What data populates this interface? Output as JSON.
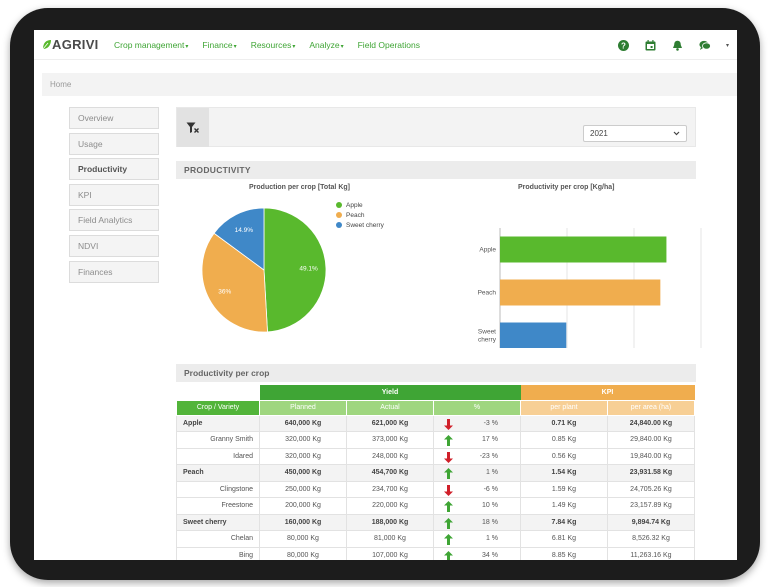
{
  "brand": {
    "name": "AGRIVI"
  },
  "nav": {
    "items": [
      {
        "label": "Crop management",
        "has_caret": true
      },
      {
        "label": "Finance",
        "has_caret": true
      },
      {
        "label": "Resources",
        "has_caret": true
      },
      {
        "label": "Analyze",
        "has_caret": true
      },
      {
        "label": "Field Operations",
        "has_caret": false
      }
    ],
    "icons": [
      "help-icon",
      "calendar-icon",
      "bell-icon",
      "chat-icon"
    ],
    "caret": "▾"
  },
  "breadcrumb": {
    "home": "Home"
  },
  "sidebar": {
    "items": [
      {
        "label": "Overview",
        "active": false
      },
      {
        "label": "Usage",
        "active": false
      },
      {
        "label": "Productivity",
        "active": true
      },
      {
        "label": "KPI",
        "active": false
      },
      {
        "label": "Field Analytics",
        "active": false
      },
      {
        "label": "NDVI",
        "active": false
      },
      {
        "label": "Finances",
        "active": false
      }
    ]
  },
  "filter": {
    "icon": "filter-clear-icon",
    "year": "2021"
  },
  "sections": {
    "productivity": "PRODUCTIVITY",
    "per_crop": "Productivity per crop"
  },
  "colors": {
    "apple": "#59b92d",
    "peach": "#f0ad4e",
    "sweet_cherry": "#3f88c8",
    "brand_green": "#3fa535"
  },
  "chart_data": [
    {
      "type": "pie",
      "title": "Production per crop [Total Kg]",
      "legend_position": "right",
      "series": [
        {
          "name": "Apple",
          "value": 49.1,
          "label": "49.1%"
        },
        {
          "name": "Peach",
          "value": 36.0,
          "label": "36%"
        },
        {
          "name": "Sweet cherry",
          "value": 14.9,
          "label": "14.9%"
        }
      ]
    },
    {
      "type": "bar",
      "orientation": "horizontal",
      "title": "Productivity per crop [Kg/ha]",
      "categories": [
        "Apple",
        "Peach",
        "Sweet cherry"
      ],
      "category_lines": [
        [
          "Apple"
        ],
        [
          "Peach"
        ],
        [
          "Sweet",
          "cherry"
        ]
      ],
      "values": [
        24840,
        23931.58,
        9894.74
      ],
      "xlim": [
        0,
        30000
      ],
      "xticks": [
        0,
        10000,
        20000,
        30000
      ],
      "xtick_labels": [
        "0",
        "10,000",
        "20,000",
        "30,000"
      ],
      "grid": true
    }
  ],
  "table": {
    "groups": {
      "yield": "Yield",
      "kpi": "KPI"
    },
    "headers": {
      "crop": "Crop / Variety",
      "planned": "Planned",
      "actual": "Actual",
      "pct": "%",
      "per_plant": "per plant",
      "per_area": "per area (ha)"
    },
    "rows": [
      {
        "type": "main",
        "name": "Apple",
        "planned": "640,000 Kg",
        "actual": "621,000 Kg",
        "trend": "down",
        "pct": "-3 %",
        "per_plant": "0.71 Kg",
        "per_area": "24,840.00 Kg"
      },
      {
        "type": "sub",
        "name": "Granny Smith",
        "planned": "320,000 Kg",
        "actual": "373,000 Kg",
        "trend": "up",
        "pct": "17 %",
        "per_plant": "0.85 Kg",
        "per_area": "29,840.00 Kg"
      },
      {
        "type": "sub",
        "name": "Idared",
        "planned": "320,000 Kg",
        "actual": "248,000 Kg",
        "trend": "down",
        "pct": "-23 %",
        "per_plant": "0.56 Kg",
        "per_area": "19,840.00 Kg"
      },
      {
        "type": "main",
        "name": "Peach",
        "planned": "450,000 Kg",
        "actual": "454,700 Kg",
        "trend": "up",
        "pct": "1 %",
        "per_plant": "1.54 Kg",
        "per_area": "23,931.58 Kg"
      },
      {
        "type": "sub",
        "name": "Clingstone",
        "planned": "250,000 Kg",
        "actual": "234,700 Kg",
        "trend": "down",
        "pct": "-6 %",
        "per_plant": "1.59 Kg",
        "per_area": "24,705.26 Kg"
      },
      {
        "type": "sub",
        "name": "Freestone",
        "planned": "200,000 Kg",
        "actual": "220,000 Kg",
        "trend": "up",
        "pct": "10 %",
        "per_plant": "1.49 Kg",
        "per_area": "23,157.89 Kg"
      },
      {
        "type": "main",
        "name": "Sweet cherry",
        "planned": "160,000 Kg",
        "actual": "188,000 Kg",
        "trend": "up",
        "pct": "18 %",
        "per_plant": "7.84 Kg",
        "per_area": "9,894.74 Kg"
      },
      {
        "type": "sub",
        "name": "Chelan",
        "planned": "80,000 Kg",
        "actual": "81,000 Kg",
        "trend": "up",
        "pct": "1 %",
        "per_plant": "6.81 Kg",
        "per_area": "8,526.32 Kg"
      },
      {
        "type": "sub",
        "name": "Bing",
        "planned": "80,000 Kg",
        "actual": "107,000 Kg",
        "trend": "up",
        "pct": "34 %",
        "per_plant": "8.85 Kg",
        "per_area": "11,263.16 Kg"
      }
    ]
  }
}
